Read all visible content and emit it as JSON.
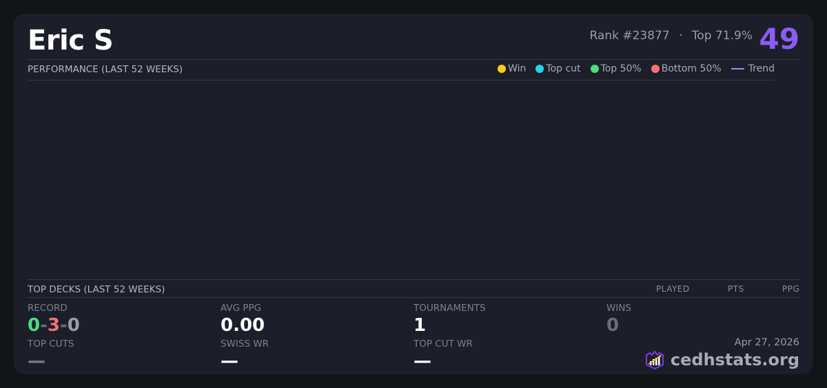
{
  "player": {
    "name": "Eric S",
    "rank": "Rank #23877",
    "separator": "·",
    "top_percent": "Top 71.9%",
    "score": "49"
  },
  "performance": {
    "title": "PERFORMANCE (LAST 52 WEEKS)",
    "legend": [
      {
        "label": "Win",
        "color": "#facc15"
      },
      {
        "label": "Top cut",
        "color": "#22d3ee"
      },
      {
        "label": "Top 50%",
        "color": "#4ade80"
      },
      {
        "label": "Bottom 50%",
        "color": "#f87171"
      },
      {
        "label": "Trend",
        "color": "#a78bfa"
      }
    ]
  },
  "top_decks": {
    "title": "TOP DECKS (LAST 52 WEEKS)",
    "columns": [
      "PLAYED",
      "PTS",
      "PPG"
    ]
  },
  "stats": {
    "record": {
      "label": "RECORD",
      "wins": "0",
      "losses": "3",
      "draws": "0",
      "sep": "-"
    },
    "avg_ppg": {
      "label": "AVG PPG",
      "value": "0.00"
    },
    "tournaments": {
      "label": "TOURNAMENTS",
      "value": "1"
    },
    "wins": {
      "label": "WINS",
      "value": "0"
    },
    "top_cuts": {
      "label": "TOP CUTS",
      "value": "—"
    },
    "swiss_wr": {
      "label": "SWISS WR",
      "value": "—"
    },
    "top_cut_wr": {
      "label": "TOP CUT WR",
      "value": "—"
    }
  },
  "footer": {
    "date": "Apr 27, 2026",
    "brand": "cedhstats.org"
  }
}
